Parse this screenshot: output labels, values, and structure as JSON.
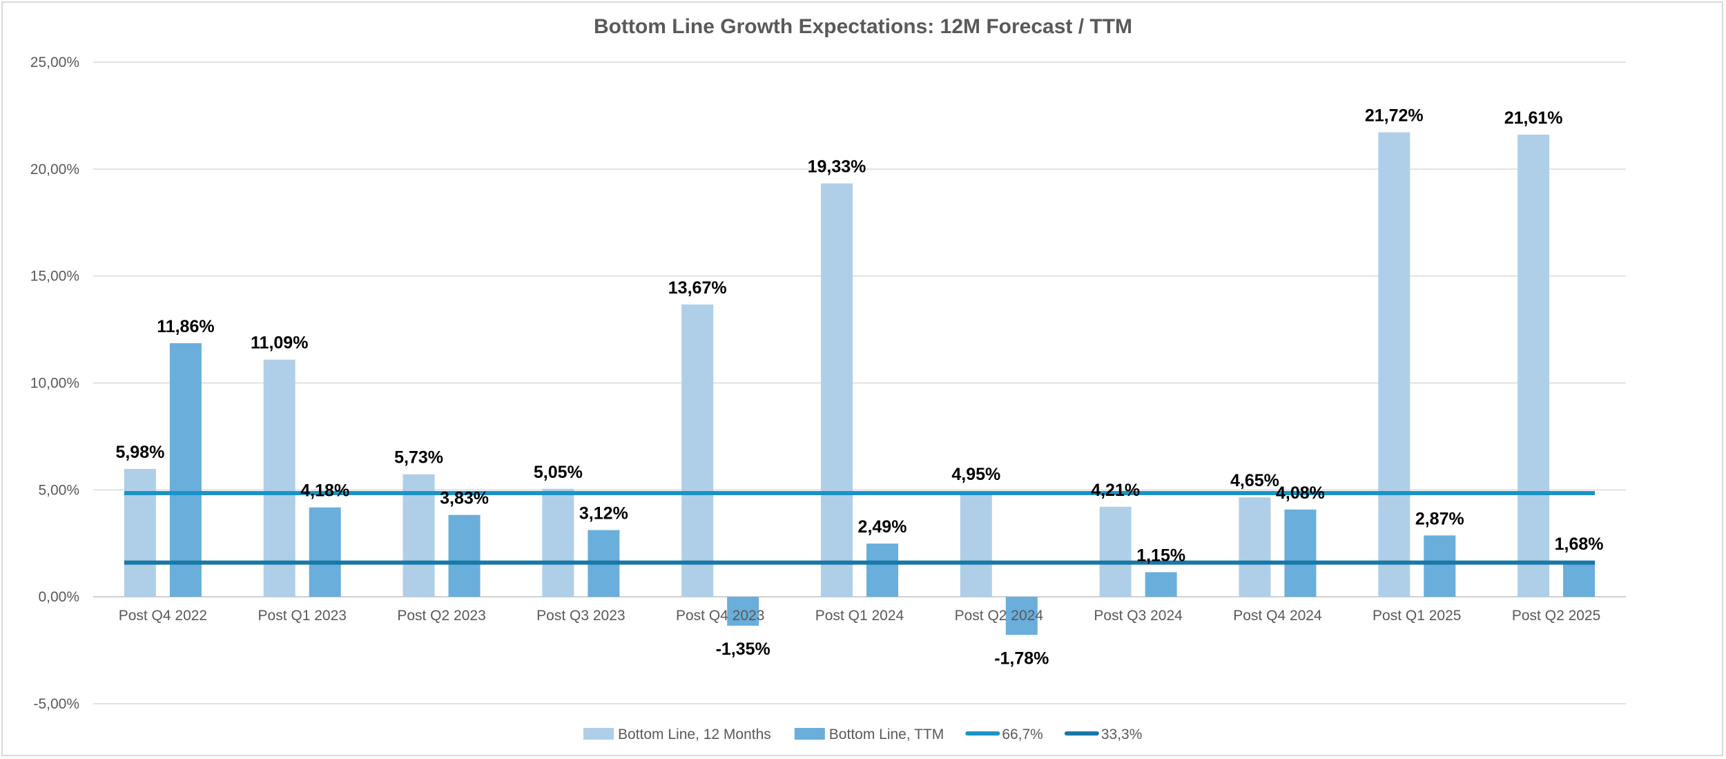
{
  "chart_data": {
    "type": "bar",
    "title": "Bottom Line Growth Expectations: 12M Forecast / TTM",
    "categories": [
      "Post Q4 2022",
      "Post Q1 2023",
      "Post Q2 2023",
      "Post Q3 2023",
      "Post Q4 2023",
      "Post Q1 2024",
      "Post Q2 2024",
      "Post Q3 2024",
      "Post Q4 2024",
      "Post Q1 2025",
      "Post Q2 2025"
    ],
    "series": [
      {
        "name": "Bottom Line, 12 Months",
        "color": "#afcfe8",
        "values": [
          5.98,
          11.09,
          5.73,
          5.05,
          13.67,
          19.33,
          4.95,
          4.21,
          4.65,
          21.72,
          21.61
        ],
        "labels": [
          "5,98%",
          "11,09%",
          "5,73%",
          "5,05%",
          "13,67%",
          "19,33%",
          "4,95%",
          "4,21%",
          "4,65%",
          "21,72%",
          "21,61%"
        ]
      },
      {
        "name": "Bottom Line, TTM",
        "color": "#6aaedb",
        "values": [
          11.86,
          4.18,
          3.83,
          3.12,
          -1.35,
          2.49,
          -1.78,
          1.15,
          4.08,
          2.87,
          1.68
        ],
        "labels": [
          "11,86%",
          "4,18%",
          "3,83%",
          "3,12%",
          "-1,35%",
          "2,49%",
          "-1,78%",
          "1,15%",
          "4,08%",
          "2,87%",
          "1,68%"
        ]
      }
    ],
    "reference_lines": [
      {
        "name": "66,7%",
        "value": 4.85,
        "color": "#1a93c7"
      },
      {
        "name": "33,3%",
        "value": 1.6,
        "color": "#1878a8"
      }
    ],
    "ylim": [
      -5,
      25
    ],
    "yticks": [
      25,
      20,
      15,
      10,
      5,
      0,
      -5
    ],
    "ytick_labels": [
      "25,00%",
      "20,00%",
      "15,00%",
      "10,00%",
      "5,00%",
      "0,00%",
      "-5,00%"
    ],
    "xlabel": "",
    "ylabel": "",
    "grid": true,
    "legend_position": "bottom"
  }
}
